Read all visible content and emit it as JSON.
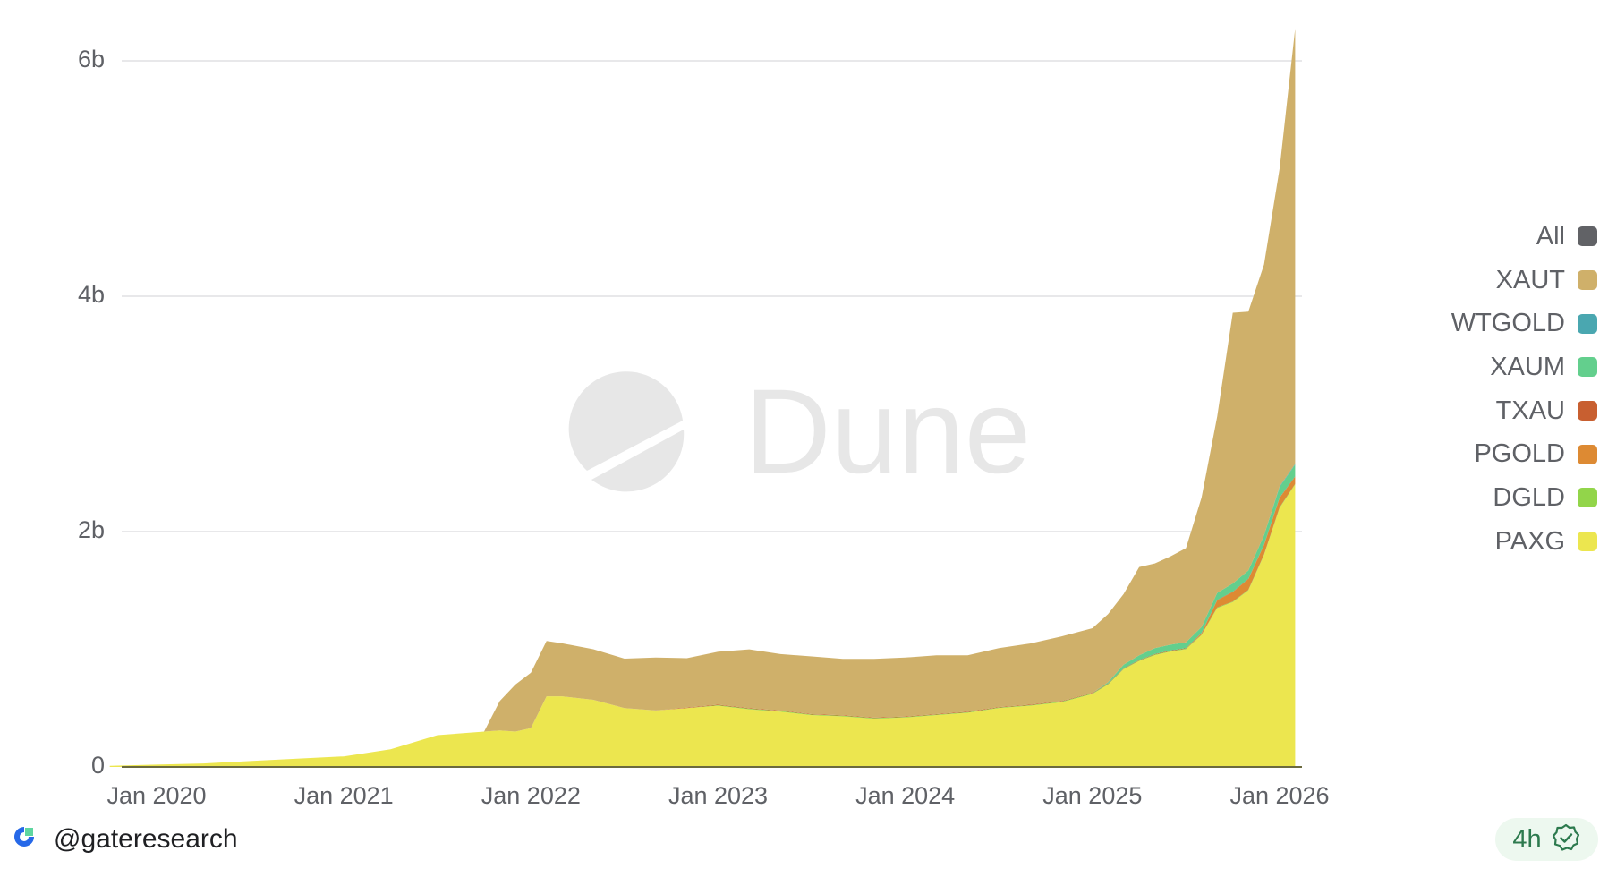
{
  "chart_data": {
    "type": "area",
    "stacked": true,
    "title": "",
    "xlabel": "",
    "ylabel": "",
    "ylim": [
      0,
      6000000000
    ],
    "y_ticks": [
      "0",
      "2b",
      "4b",
      "6b"
    ],
    "x_ticks": [
      "Jan 2020",
      "Jan 2021",
      "Jan 2022",
      "Jan 2023",
      "Jan 2024",
      "Jan 2025",
      "Jan 2026"
    ],
    "grid": true,
    "legend_position": "right",
    "x": [
      "2019-10",
      "2020-01",
      "2020-04",
      "2020-07",
      "2020-10",
      "2021-01",
      "2021-04",
      "2021-07",
      "2021-10",
      "2021-11",
      "2021-12",
      "2022-01",
      "2022-02",
      "2022-03",
      "2022-05",
      "2022-07",
      "2022-09",
      "2022-11",
      "2023-01",
      "2023-03",
      "2023-05",
      "2023-07",
      "2023-09",
      "2023-11",
      "2024-01",
      "2024-03",
      "2024-05",
      "2024-07",
      "2024-09",
      "2024-11",
      "2025-01",
      "2025-02",
      "2025-03",
      "2025-04",
      "2025-05",
      "2025-06",
      "2025-07",
      "2025-08",
      "2025-09",
      "2025-10",
      "2025-11",
      "2025-12",
      "2026-01",
      "2026-02"
    ],
    "series": [
      {
        "name": "PAXG",
        "color": "#ece64f",
        "values_b": [
          0.01,
          0.02,
          0.03,
          0.05,
          0.07,
          0.09,
          0.15,
          0.27,
          0.3,
          0.31,
          0.3,
          0.33,
          0.6,
          0.6,
          0.57,
          0.5,
          0.48,
          0.5,
          0.52,
          0.49,
          0.47,
          0.44,
          0.43,
          0.41,
          0.42,
          0.44,
          0.46,
          0.5,
          0.52,
          0.55,
          0.62,
          0.7,
          0.83,
          0.9,
          0.95,
          0.98,
          1.0,
          1.12,
          1.35,
          1.4,
          1.5,
          1.8,
          2.2,
          2.4
        ]
      },
      {
        "name": "DGLD",
        "color": "#92d54a",
        "values_b": [
          0,
          0,
          0,
          0,
          0,
          0,
          0,
          0,
          0,
          0,
          0,
          0,
          0,
          0,
          0,
          0,
          0,
          0,
          0.005,
          0.005,
          0.005,
          0.005,
          0.005,
          0.005,
          0.005,
          0.005,
          0.005,
          0.005,
          0.005,
          0.005,
          0.005,
          0.005,
          0.005,
          0.005,
          0.005,
          0.005,
          0.005,
          0.005,
          0.005,
          0.005,
          0.005,
          0.005,
          0.005,
          0.005
        ]
      },
      {
        "name": "PGOLD",
        "color": "#dd8a33",
        "values_b": [
          0,
          0,
          0,
          0,
          0,
          0,
          0,
          0,
          0,
          0,
          0,
          0,
          0,
          0,
          0,
          0,
          0,
          0,
          0,
          0,
          0,
          0,
          0,
          0,
          0,
          0,
          0,
          0,
          0,
          0,
          0,
          0,
          0,
          0,
          0,
          0,
          0,
          0.01,
          0.06,
          0.08,
          0.09,
          0.08,
          0.08,
          0.06
        ]
      },
      {
        "name": "TXAU",
        "color": "#c85f30",
        "values_b": [
          0,
          0,
          0,
          0,
          0,
          0,
          0,
          0,
          0,
          0,
          0,
          0,
          0,
          0,
          0,
          0,
          0,
          0.004,
          0.004,
          0.004,
          0.004,
          0.004,
          0.004,
          0.004,
          0.004,
          0.004,
          0.004,
          0.004,
          0.004,
          0.004,
          0.004,
          0.004,
          0.004,
          0.004,
          0.004,
          0.004,
          0.004,
          0.004,
          0.004,
          0.004,
          0.004,
          0.004,
          0.004,
          0.004
        ]
      },
      {
        "name": "XAUM",
        "color": "#63cf8d",
        "values_b": [
          0,
          0,
          0,
          0,
          0,
          0,
          0,
          0,
          0,
          0,
          0,
          0,
          0,
          0,
          0,
          0,
          0,
          0,
          0,
          0,
          0,
          0,
          0,
          0,
          0,
          0,
          0,
          0,
          0,
          0,
          0,
          0.01,
          0.03,
          0.04,
          0.05,
          0.05,
          0.05,
          0.05,
          0.06,
          0.07,
          0.07,
          0.08,
          0.09,
          0.1
        ]
      },
      {
        "name": "WTGOLD",
        "color": "#4aa7b0",
        "values_b": [
          0,
          0,
          0,
          0,
          0,
          0,
          0,
          0,
          0,
          0,
          0,
          0,
          0,
          0,
          0,
          0,
          0,
          0,
          0,
          0,
          0,
          0,
          0,
          0,
          0,
          0,
          0,
          0,
          0,
          0,
          0,
          0,
          0,
          0,
          0,
          0,
          0,
          0,
          0,
          0,
          0,
          0,
          0.005,
          0.005
        ]
      },
      {
        "name": "XAUT",
        "color": "#cfb06a",
        "values_b": [
          0,
          0,
          0,
          0,
          0,
          0,
          0,
          0,
          0,
          0.25,
          0.4,
          0.47,
          0.47,
          0.45,
          0.43,
          0.42,
          0.45,
          0.42,
          0.45,
          0.5,
          0.48,
          0.49,
          0.48,
          0.5,
          0.5,
          0.5,
          0.48,
          0.5,
          0.52,
          0.55,
          0.55,
          0.58,
          0.6,
          0.75,
          0.72,
          0.75,
          0.8,
          1.1,
          1.5,
          2.3,
          2.2,
          2.3,
          2.7,
          3.7
        ]
      }
    ],
    "legend": [
      "All",
      "XAUT",
      "WTGOLD",
      "XAUM",
      "TXAU",
      "PGOLD",
      "DGLD",
      "PAXG"
    ]
  },
  "legend": {
    "items": [
      {
        "label": "All",
        "color": "#616266"
      },
      {
        "label": "XAUT",
        "color": "#cfb06a"
      },
      {
        "label": "WTGOLD",
        "color": "#4aa7b0"
      },
      {
        "label": "XAUM",
        "color": "#63cf8d"
      },
      {
        "label": "TXAU",
        "color": "#c85f30"
      },
      {
        "label": "PGOLD",
        "color": "#dd8a33"
      },
      {
        "label": "DGLD",
        "color": "#92d54a"
      },
      {
        "label": "PAXG",
        "color": "#ece64f"
      }
    ]
  },
  "watermark": {
    "text": "Dune"
  },
  "footer": {
    "author": "@gateresearch",
    "refresh_badge": "4h"
  }
}
